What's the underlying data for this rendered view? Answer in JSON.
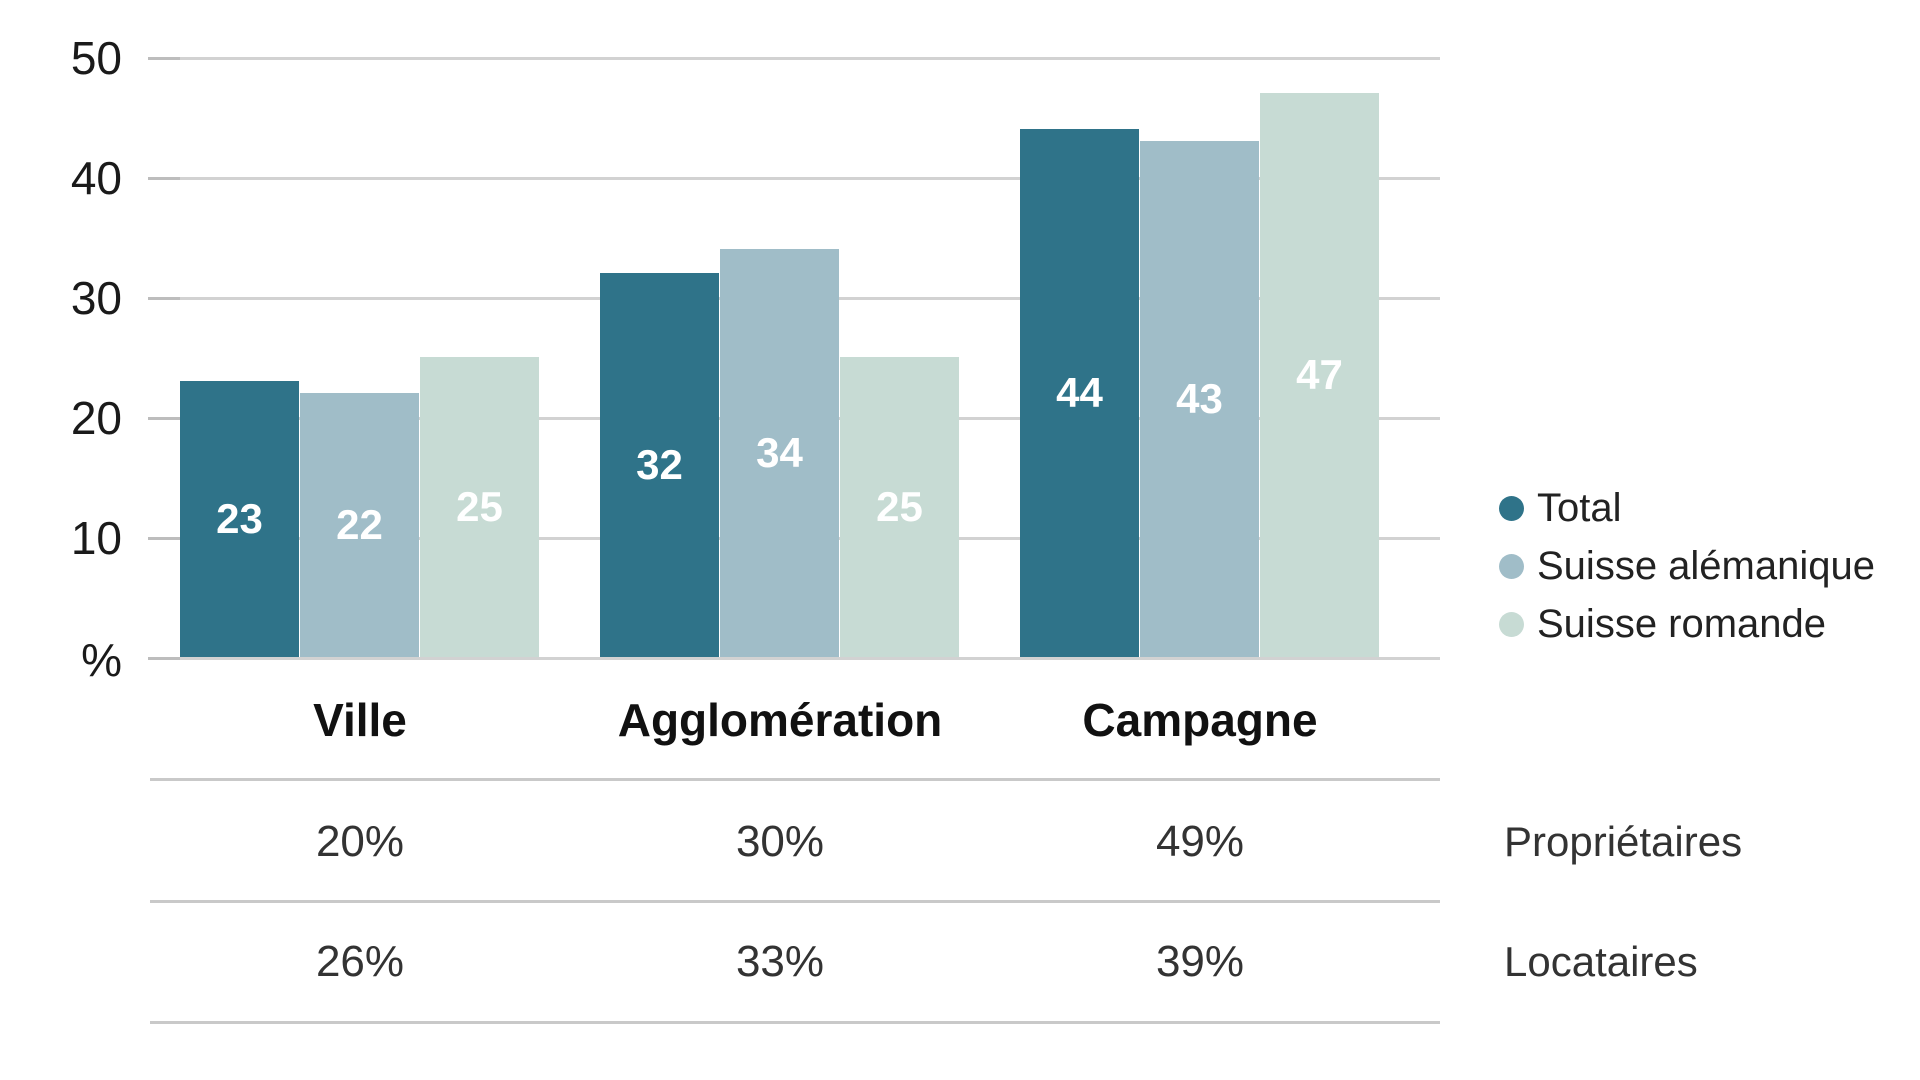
{
  "chart_data": {
    "type": "bar",
    "title": "",
    "unit_label": "%",
    "categories": [
      "Ville",
      "Agglomération",
      "Campagne"
    ],
    "series": [
      {
        "name": "Total",
        "color": "#2f7389",
        "values": [
          23,
          32,
          44
        ]
      },
      {
        "name": "Suisse alémanique",
        "color": "#a0bdc8",
        "values": [
          22,
          34,
          43
        ]
      },
      {
        "name": "Suisse romande",
        "color": "#c7dbd4",
        "values": [
          25,
          25,
          47
        ]
      }
    ],
    "ylim": [
      0,
      50
    ],
    "yticks": [
      50,
      40,
      30,
      20,
      10
    ],
    "grid": "horizontal-gridlines-on",
    "legend_position": "right",
    "value_labels": "inside-bars-white"
  },
  "summary_table": {
    "rows": [
      {
        "label": "Propriétaires",
        "values": [
          "20%",
          "30%",
          "49%"
        ]
      },
      {
        "label": "Locataires",
        "values": [
          "26%",
          "33%",
          "39%"
        ]
      }
    ]
  },
  "colors": {
    "total": "#2f7389",
    "suisse_alemanique": "#a0bdc8",
    "suisse_romande": "#c7dbd4",
    "gridline": "#d2d2d2",
    "text": "#1a1a1a",
    "bar_value_text": "#ffffff"
  }
}
